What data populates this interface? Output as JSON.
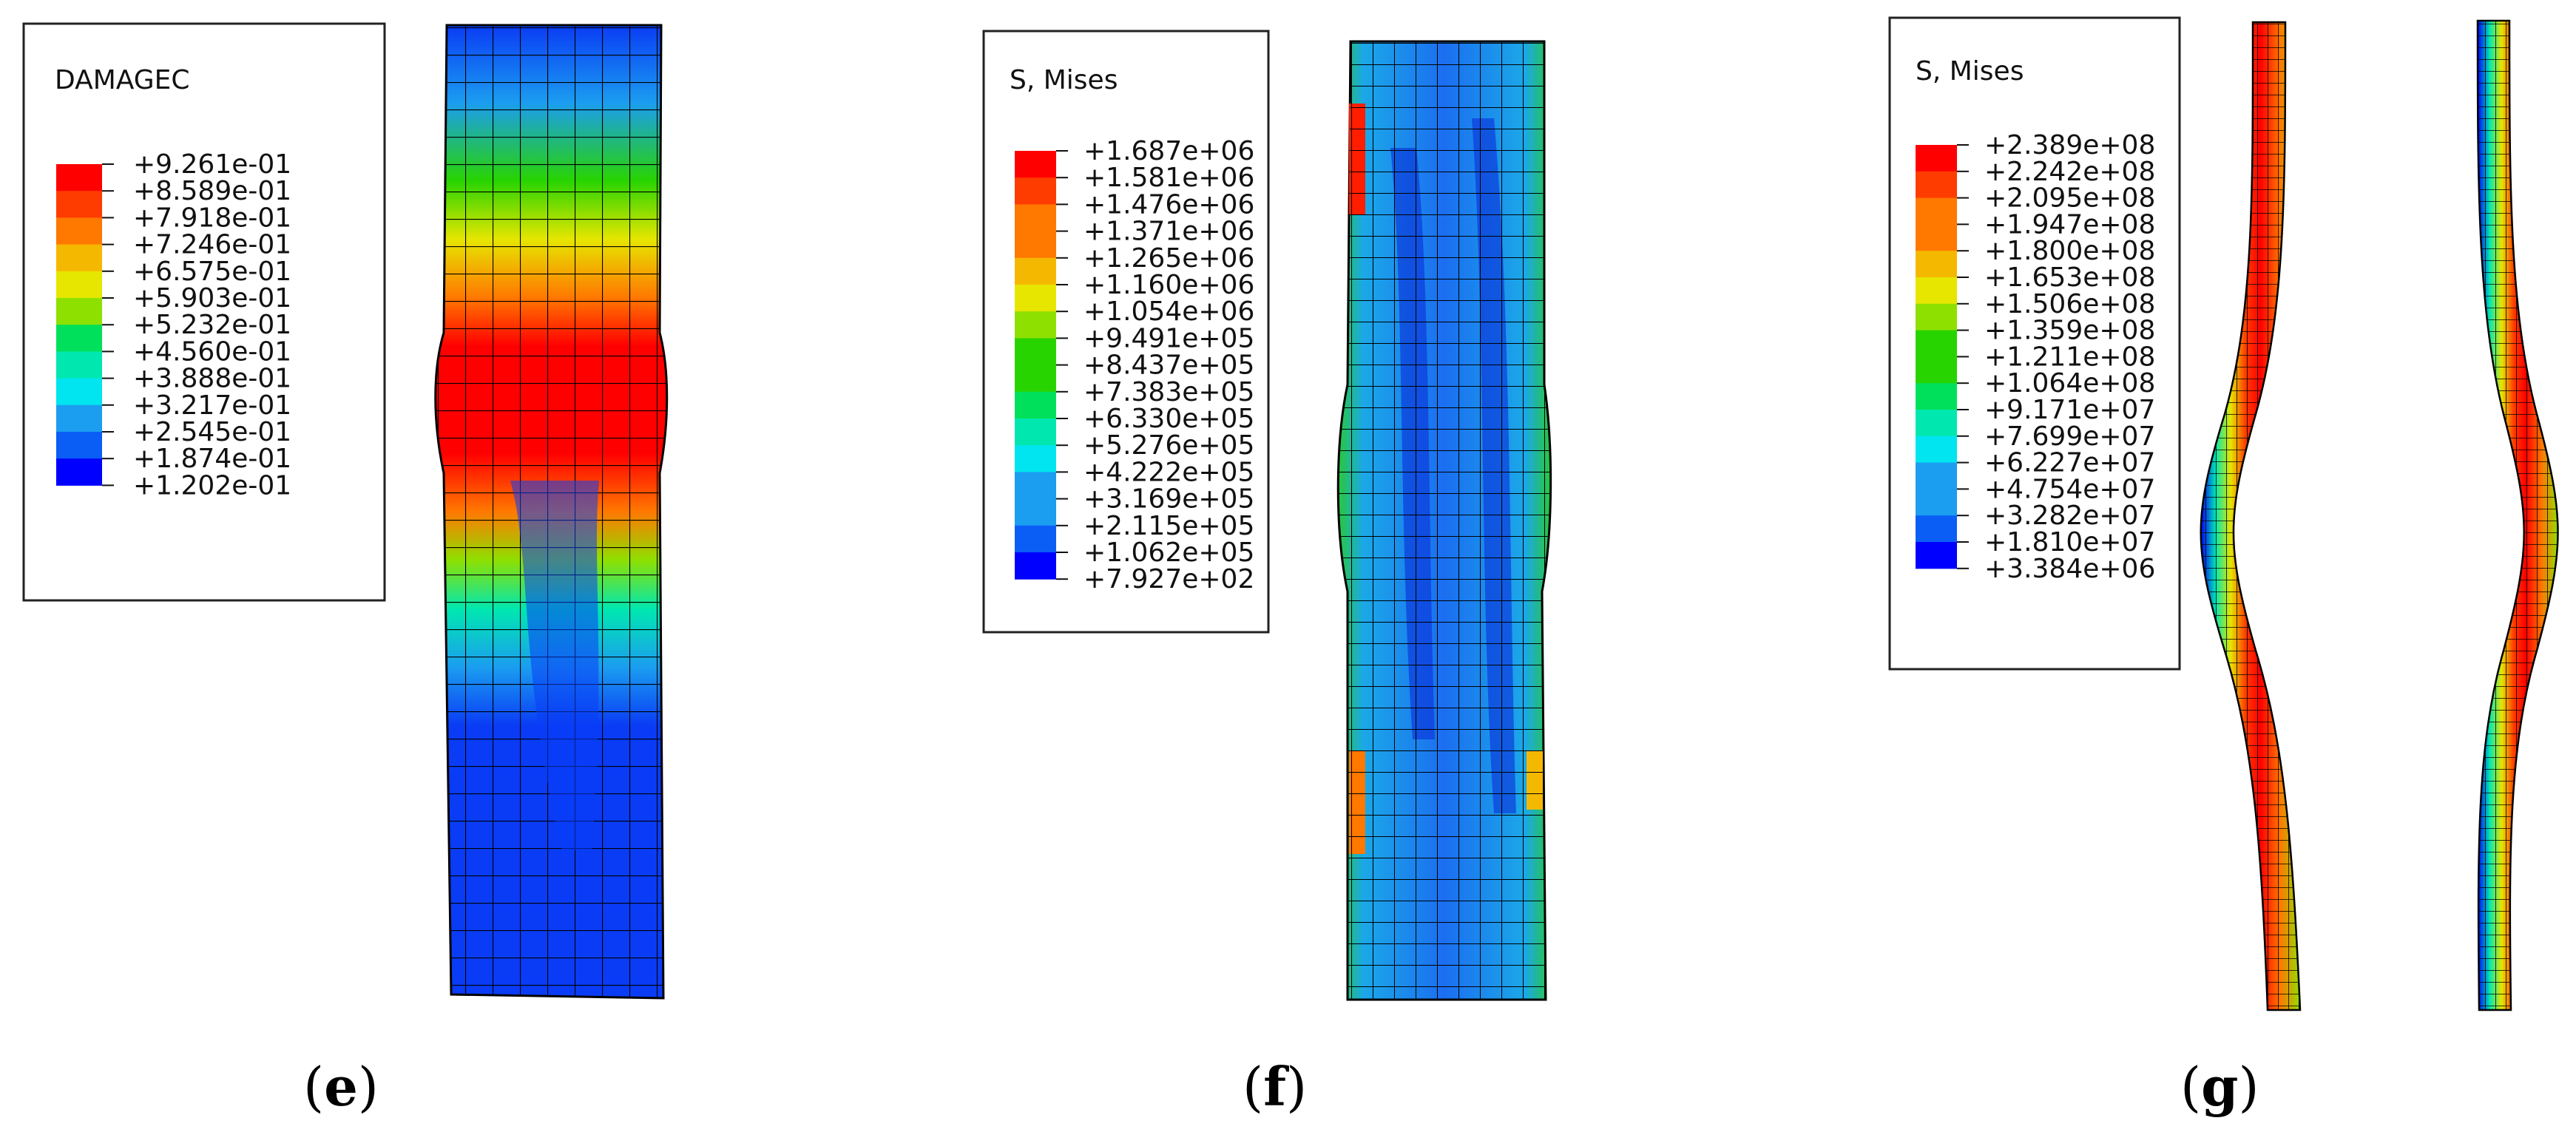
{
  "palette": [
    "#0000ff",
    "#0a5ef5",
    "#1b9df0",
    "#00e5ef",
    "#00e8b0",
    "#00e05a",
    "#28d400",
    "#8ee000",
    "#e6e600",
    "#f5b800",
    "#ff7800",
    "#ff3c00",
    "#ff0000"
  ],
  "panels": [
    {
      "id": "e",
      "label_open": "(",
      "label_letter": "e",
      "label_close": ")",
      "legend": {
        "title": "DAMAGEC",
        "values": [
          "+9.261e-01",
          "+8.589e-01",
          "+7.918e-01",
          "+7.246e-01",
          "+6.575e-01",
          "+5.903e-01",
          "+5.232e-01",
          "+4.560e-01",
          "+3.888e-01",
          "+3.217e-01",
          "+2.545e-01",
          "+1.874e-01",
          "+1.202e-01"
        ]
      }
    },
    {
      "id": "f",
      "label_open": "(",
      "label_letter": "f",
      "label_close": ")",
      "legend": {
        "title": "S, Mises",
        "values": [
          "+1.687e+06",
          "+1.581e+06",
          "+1.476e+06",
          "+1.371e+06",
          "+1.265e+06",
          "+1.160e+06",
          "+1.054e+06",
          "+9.491e+05",
          "+8.437e+05",
          "+7.383e+05",
          "+6.330e+05",
          "+5.276e+05",
          "+4.222e+05",
          "+3.169e+05",
          "+2.115e+05",
          "+1.062e+05",
          "+7.927e+02"
        ]
      }
    },
    {
      "id": "g",
      "label_open": "(",
      "label_letter": "g",
      "label_close": ")",
      "legend": {
        "title": "S, Mises",
        "values": [
          "+2.389e+08",
          "+2.242e+08",
          "+2.095e+08",
          "+1.947e+08",
          "+1.800e+08",
          "+1.653e+08",
          "+1.506e+08",
          "+1.359e+08",
          "+1.211e+08",
          "+1.064e+08",
          "+9.171e+07",
          "+7.699e+07",
          "+6.227e+07",
          "+4.754e+07",
          "+3.282e+07",
          "+1.810e+07",
          "+3.384e+06"
        ]
      }
    }
  ]
}
